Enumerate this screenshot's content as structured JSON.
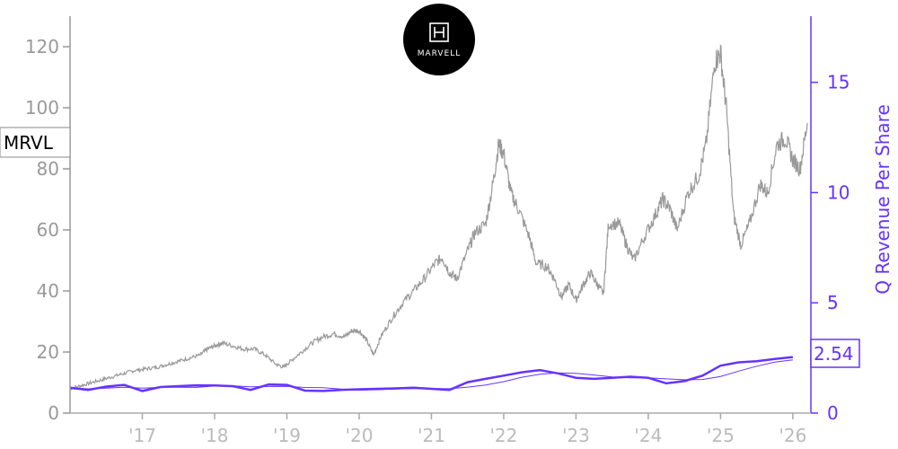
{
  "chart_data": {
    "type": "line",
    "ticker": "MRVL",
    "logo_text": "MARVELL",
    "ylabel_right": "Q Revenue Per Share",
    "left_axis": {
      "ticks": [
        0,
        20,
        40,
        60,
        80,
        100,
        120
      ],
      "range": [
        0,
        130
      ]
    },
    "right_axis": {
      "ticks": [
        0,
        5,
        10,
        15
      ],
      "range": [
        0,
        18
      ]
    },
    "x_axis": {
      "range": [
        2016.0,
        2026.25
      ],
      "ticks": [
        {
          "value": 2017,
          "label": "'17"
        },
        {
          "value": 2018,
          "label": "'18"
        },
        {
          "value": 2019,
          "label": "'19"
        },
        {
          "value": 2020,
          "label": "'20"
        },
        {
          "value": 2021,
          "label": "'21"
        },
        {
          "value": 2022,
          "label": "'22"
        },
        {
          "value": 2023,
          "label": "'23"
        },
        {
          "value": 2024,
          "label": "'24"
        },
        {
          "value": 2025,
          "label": "'25"
        },
        {
          "value": 2026,
          "label": "'26"
        }
      ]
    },
    "last_value_label": "2.54",
    "colors": {
      "price": "#999999",
      "revenue": "#6633ff",
      "trend": "#6633ff",
      "logo_bg": "#000000"
    },
    "series": [
      {
        "axis": "left",
        "points": [
          [
            2016.0,
            8
          ],
          [
            2016.15,
            9
          ],
          [
            2016.3,
            10
          ],
          [
            2016.45,
            11
          ],
          [
            2016.6,
            12
          ],
          [
            2016.75,
            13
          ],
          [
            2016.9,
            14
          ],
          [
            2017.05,
            14.5
          ],
          [
            2017.2,
            15
          ],
          [
            2017.35,
            16
          ],
          [
            2017.5,
            17
          ],
          [
            2017.65,
            18
          ],
          [
            2017.8,
            19
          ],
          [
            2017.9,
            21
          ],
          [
            2018.0,
            22
          ],
          [
            2018.1,
            23
          ],
          [
            2018.25,
            22
          ],
          [
            2018.4,
            21
          ],
          [
            2018.55,
            21
          ],
          [
            2018.7,
            19
          ],
          [
            2018.85,
            16
          ],
          [
            2018.95,
            15
          ],
          [
            2019.05,
            17
          ],
          [
            2019.2,
            20
          ],
          [
            2019.35,
            23
          ],
          [
            2019.5,
            25
          ],
          [
            2019.65,
            26
          ],
          [
            2019.8,
            25
          ],
          [
            2019.9,
            27
          ],
          [
            2020.0,
            27
          ],
          [
            2020.1,
            24
          ],
          [
            2020.2,
            19
          ],
          [
            2020.3,
            25
          ],
          [
            2020.45,
            31
          ],
          [
            2020.6,
            36
          ],
          [
            2020.75,
            40
          ],
          [
            2020.9,
            44
          ],
          [
            2021.05,
            49
          ],
          [
            2021.15,
            51
          ],
          [
            2021.25,
            46
          ],
          [
            2021.35,
            44
          ],
          [
            2021.5,
            53
          ],
          [
            2021.6,
            59
          ],
          [
            2021.75,
            62
          ],
          [
            2021.85,
            75
          ],
          [
            2021.93,
            88
          ],
          [
            2022.0,
            85
          ],
          [
            2022.1,
            72
          ],
          [
            2022.2,
            67
          ],
          [
            2022.35,
            58
          ],
          [
            2022.45,
            49
          ],
          [
            2022.6,
            48
          ],
          [
            2022.7,
            44
          ],
          [
            2022.8,
            38
          ],
          [
            2022.9,
            42
          ],
          [
            2023.0,
            37
          ],
          [
            2023.1,
            42
          ],
          [
            2023.2,
            46
          ],
          [
            2023.3,
            42
          ],
          [
            2023.38,
            39
          ],
          [
            2023.45,
            62
          ],
          [
            2023.6,
            62
          ],
          [
            2023.7,
            55
          ],
          [
            2023.8,
            50
          ],
          [
            2023.95,
            58
          ],
          [
            2024.1,
            65
          ],
          [
            2024.2,
            70
          ],
          [
            2024.3,
            67
          ],
          [
            2024.4,
            60
          ],
          [
            2024.55,
            72
          ],
          [
            2024.7,
            78
          ],
          [
            2024.8,
            88
          ],
          [
            2024.92,
            115
          ],
          [
            2025.0,
            118
          ],
          [
            2025.08,
            100
          ],
          [
            2025.18,
            65
          ],
          [
            2025.28,
            55
          ],
          [
            2025.4,
            62
          ],
          [
            2025.55,
            75
          ],
          [
            2025.65,
            72
          ],
          [
            2025.78,
            88
          ],
          [
            2025.9,
            90
          ],
          [
            2026.0,
            83
          ],
          [
            2026.1,
            80
          ],
          [
            2026.2,
            95
          ]
        ]
      },
      {
        "axis": "right",
        "points": [
          [
            2016.0,
            1.15
          ],
          [
            2016.25,
            1.05
          ],
          [
            2016.5,
            1.2
          ],
          [
            2016.75,
            1.28
          ],
          [
            2017.0,
            1.0
          ],
          [
            2017.25,
            1.18
          ],
          [
            2017.5,
            1.22
          ],
          [
            2017.75,
            1.26
          ],
          [
            2018.0,
            1.25
          ],
          [
            2018.25,
            1.22
          ],
          [
            2018.5,
            1.05
          ],
          [
            2018.75,
            1.3
          ],
          [
            2019.0,
            1.28
          ],
          [
            2019.25,
            1.02
          ],
          [
            2019.5,
            1.0
          ],
          [
            2019.75,
            1.05
          ],
          [
            2020.0,
            1.08
          ],
          [
            2020.25,
            1.1
          ],
          [
            2020.5,
            1.12
          ],
          [
            2020.75,
            1.15
          ],
          [
            2021.0,
            1.1
          ],
          [
            2021.25,
            1.05
          ],
          [
            2021.5,
            1.4
          ],
          [
            2021.75,
            1.55
          ],
          [
            2022.0,
            1.7
          ],
          [
            2022.25,
            1.85
          ],
          [
            2022.5,
            1.95
          ],
          [
            2022.75,
            1.8
          ],
          [
            2023.0,
            1.6
          ],
          [
            2023.25,
            1.55
          ],
          [
            2023.5,
            1.6
          ],
          [
            2023.75,
            1.65
          ],
          [
            2024.0,
            1.6
          ],
          [
            2024.25,
            1.35
          ],
          [
            2024.5,
            1.45
          ],
          [
            2024.75,
            1.7
          ],
          [
            2025.0,
            2.15
          ],
          [
            2025.25,
            2.3
          ],
          [
            2025.5,
            2.35
          ],
          [
            2025.75,
            2.45
          ],
          [
            2026.0,
            2.54
          ]
        ]
      }
    ]
  }
}
